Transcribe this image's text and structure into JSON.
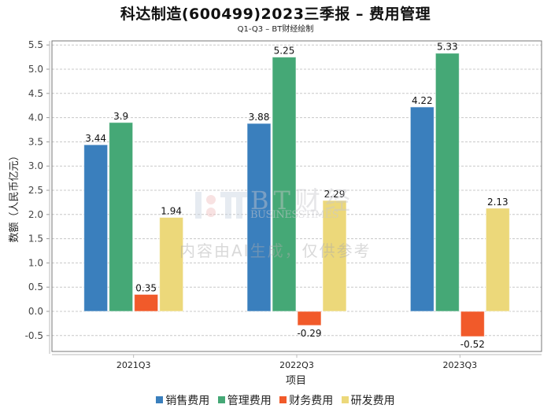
{
  "title": "科达制造(600499)2023三季报 – 费用管理",
  "subtitle": "Q1-Q3 – BT财经绘制",
  "watermark": {
    "brand": "BT财经",
    "brand_sub": "BUSINESSTIMES",
    "notice": "内容由AI生成，仅供参考"
  },
  "chart_data": {
    "type": "bar",
    "title": "科达制造(600499)2023三季报 – 费用管理",
    "subtitle": "Q1-Q3 – BT财经绘制",
    "xlabel": "项目",
    "ylabel": "数额（人民币亿元）",
    "categories": [
      "2021Q3",
      "2022Q3",
      "2023Q3"
    ],
    "series": [
      {
        "name": "销售费用",
        "color": "#3a7fbd",
        "values": [
          3.44,
          3.88,
          4.22
        ]
      },
      {
        "name": "管理费用",
        "color": "#45a876",
        "values": [
          3.9,
          5.25,
          5.33
        ]
      },
      {
        "name": "财务费用",
        "color": "#f15a2a",
        "values": [
          0.35,
          -0.29,
          -0.52
        ]
      },
      {
        "name": "研发费用",
        "color": "#ecd87a",
        "values": [
          1.94,
          2.29,
          2.13
        ]
      }
    ],
    "data_labels": [
      [
        "3.44",
        "3.9",
        "0.35",
        "1.94"
      ],
      [
        "3.88",
        "5.25",
        "-0.29",
        "2.29"
      ],
      [
        "4.22",
        "5.33",
        "-0.52",
        "2.13"
      ]
    ],
    "ylim": [
      -0.65,
      5.6
    ],
    "yticks": [
      -0.5,
      0.0,
      0.5,
      1.0,
      1.5,
      2.0,
      2.5,
      3.0,
      3.5,
      4.0,
      4.5,
      5.0,
      5.5
    ],
    "ytick_labels": [
      "-0.5",
      "0.0",
      "0.5",
      "1.0",
      "1.5",
      "2.0",
      "2.5",
      "3.0",
      "3.5",
      "4.0",
      "4.5",
      "5.0",
      "5.5"
    ],
    "grid": true,
    "legend_position": "bottom"
  }
}
